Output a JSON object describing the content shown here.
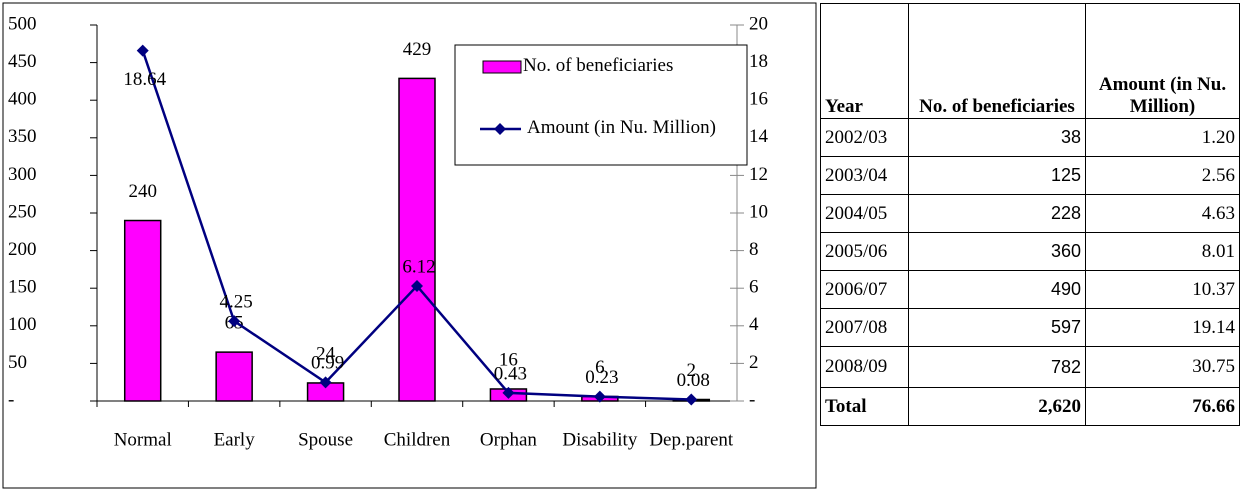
{
  "chart_data": {
    "type": "combo",
    "categories": [
      "Normal",
      "Early",
      "Spouse",
      "Children",
      "Orphan",
      "Disability",
      "Dep.parent"
    ],
    "series": [
      {
        "name": "No. of beneficiaries",
        "type": "bar",
        "color": "#ff00ff",
        "values": [
          240,
          65,
          24,
          429,
          16,
          6,
          2
        ]
      },
      {
        "name": "Amount (in Nu. Million)",
        "type": "line",
        "axis": "y2",
        "color": "#000080",
        "values": [
          18.64,
          4.25,
          0.99,
          6.12,
          0.43,
          0.23,
          0.08
        ]
      }
    ],
    "ylim": [
      0,
      500
    ],
    "yticks": [
      {
        "value": 0,
        "label": "-"
      },
      50,
      100,
      150,
      200,
      250,
      300,
      350,
      400,
      450,
      500
    ],
    "y2lim": [
      0,
      20
    ],
    "y2ticks": [
      {
        "value": 0,
        "label": "-"
      },
      2,
      4,
      6,
      8,
      10,
      12,
      14,
      16,
      18,
      20
    ],
    "legend": "top-right"
  },
  "table": {
    "headers": [
      "Year",
      "No. of beneficiaries",
      "Amount (in Nu. Million)"
    ],
    "rows": [
      [
        "2002/03",
        "38",
        "1.20"
      ],
      [
        "2003/04",
        "125",
        "2.56"
      ],
      [
        "2004/05",
        "228",
        "4.63"
      ],
      [
        "2005/06",
        "360",
        "8.01"
      ],
      [
        "2006/07",
        "490",
        "10.37"
      ],
      [
        "2007/08",
        "597",
        "19.14"
      ],
      [
        "2008/09",
        "782",
        "30.75"
      ]
    ],
    "total": [
      "Total",
      "2,620",
      "76.66"
    ]
  }
}
